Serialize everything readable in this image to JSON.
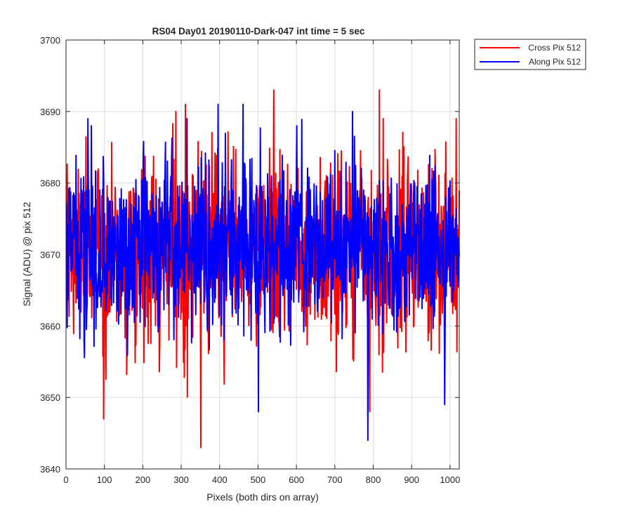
{
  "chart_data": {
    "type": "line",
    "title": "RS04 Day01 20190110-Dark-047 int time = 5 sec",
    "xlabel": "Pixels (both dirs on array)",
    "ylabel": "Signal (ADU) @ pix 512",
    "xlim": [
      0,
      1024
    ],
    "ylim": [
      3640,
      3700
    ],
    "xticks": [
      0,
      100,
      200,
      300,
      400,
      500,
      600,
      700,
      800,
      900,
      1000
    ],
    "yticks": [
      3640,
      3650,
      3660,
      3670,
      3680,
      3690,
      3700
    ],
    "grid": true,
    "legend_position": "outside top-right",
    "n_points": 1024,
    "series": [
      {
        "name": "Cross Pix 512",
        "color": "#ff0000",
        "mean": 3670.5,
        "std": 6.5,
        "min": 3643,
        "max": 3693,
        "extremes": [
          {
            "x": 350,
            "y": 3643
          },
          {
            "x": 97,
            "y": 3647
          },
          {
            "x": 790,
            "y": 3648
          },
          {
            "x": 540,
            "y": 3693
          },
          {
            "x": 815,
            "y": 3693
          },
          {
            "x": 310,
            "y": 3691
          },
          {
            "x": 285,
            "y": 3690
          },
          {
            "x": 825,
            "y": 3689
          },
          {
            "x": 1015,
            "y": 3689
          }
        ]
      },
      {
        "name": "Along Pix 512",
        "color": "#0000ff",
        "mean": 3671,
        "std": 6,
        "min": 3644,
        "max": 3691,
        "extremes": [
          {
            "x": 785,
            "y": 3644
          },
          {
            "x": 500,
            "y": 3648
          },
          {
            "x": 985,
            "y": 3649
          },
          {
            "x": 395,
            "y": 3691
          },
          {
            "x": 460,
            "y": 3691
          },
          {
            "x": 745,
            "y": 3690
          },
          {
            "x": 65,
            "y": 3688
          },
          {
            "x": 600,
            "y": 3688
          }
        ]
      }
    ]
  }
}
